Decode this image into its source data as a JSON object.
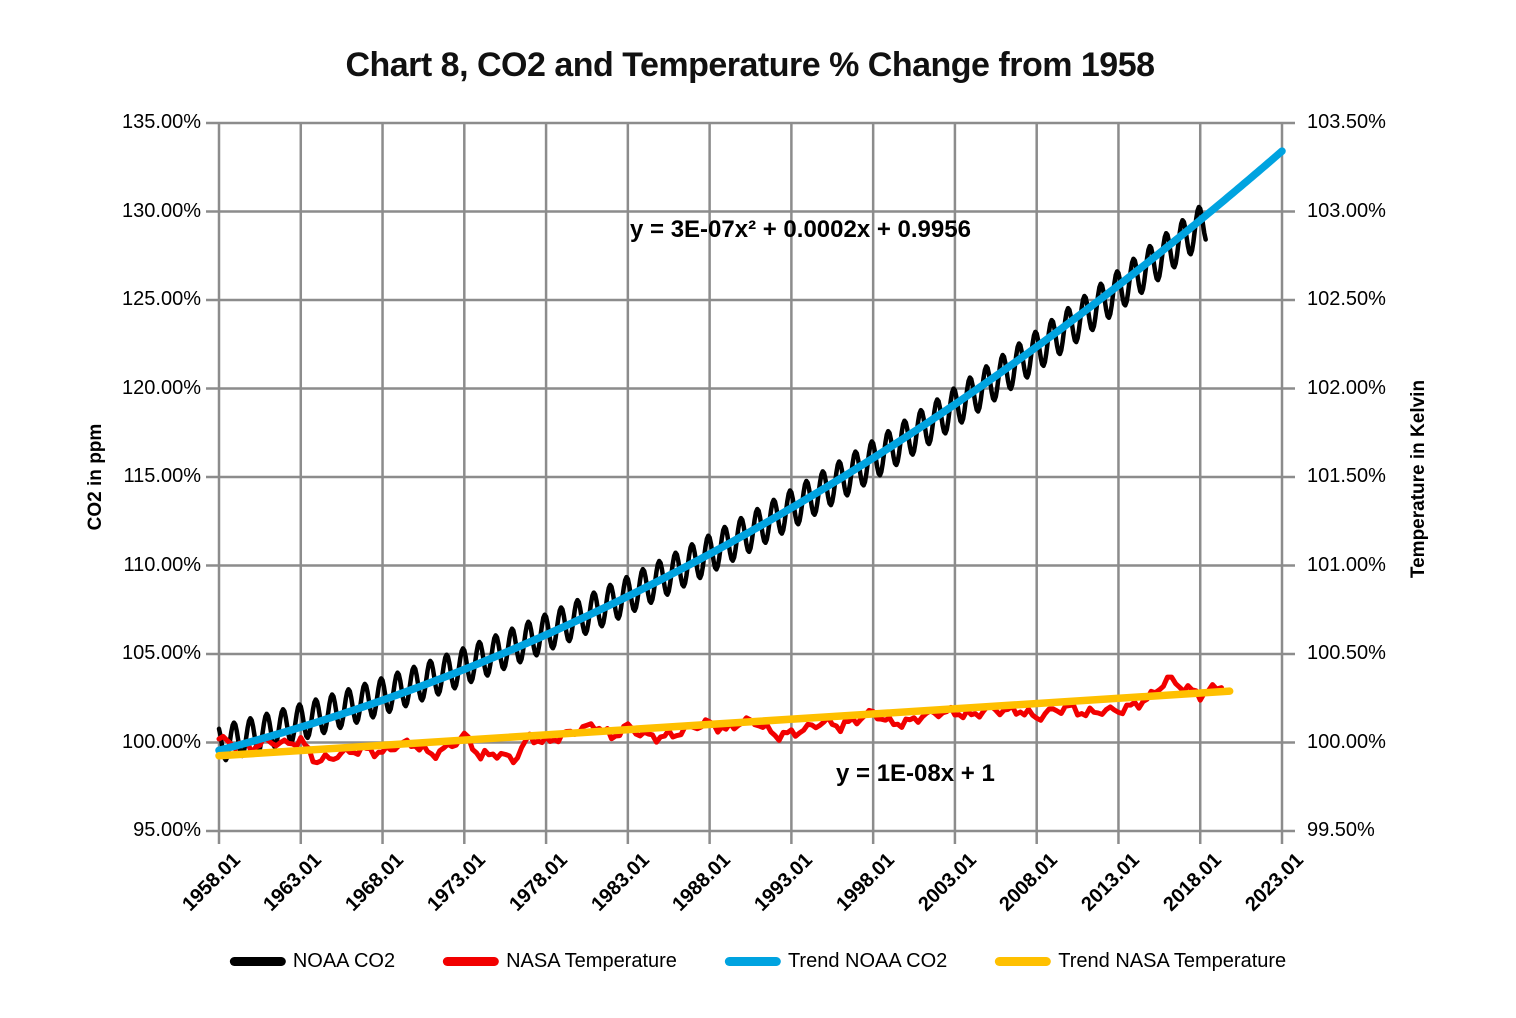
{
  "chart_data": {
    "type": "line",
    "title": "Chart 8, CO2 and Temperature % Change from 1958",
    "grid": true,
    "legend_position": "bottom",
    "colors": {
      "noaa_co2": "#000000",
      "nasa_temperature": "#F20000",
      "trend_noaa_co2": "#00A3E0",
      "trend_nasa_temperature": "#FFC000",
      "gridline": "#8C8C8C",
      "text": "#000000"
    },
    "x_axis": {
      "tick_labels": [
        "1958.01",
        "1963.01",
        "1968.01",
        "1973.01",
        "1978.01",
        "1983.01",
        "1988.01",
        "1993.01",
        "1998.01",
        "2003.01",
        "2008.01",
        "2013.01",
        "2018.01",
        "2023.01"
      ],
      "start_year": 1958,
      "end_year": 2023,
      "tick_step_years": 5
    },
    "left_axis": {
      "title": "CO2 in ppm",
      "tick_labels": [
        "135.00%",
        "130.00%",
        "125.00%",
        "120.00%",
        "115.00%",
        "110.00%",
        "105.00%",
        "100.00%",
        "95.00%"
      ],
      "min_pct": 95.0,
      "max_pct": 135.0,
      "step_pct": 5.0
    },
    "right_axis": {
      "title": "Temperature in Kelvin",
      "tick_labels": [
        "103.50%",
        "103.00%",
        "102.50%",
        "102.00%",
        "101.50%",
        "101.00%",
        "100.50%",
        "100.00%",
        "99.50%"
      ],
      "min_pct": 99.5,
      "max_pct": 103.5,
      "step_pct": 0.5
    },
    "annotations": {
      "co2_trend_equation": "y = 3E-07x² + 0.0002x + 0.9956",
      "temp_trend_equation": "y = 1E-08x + 1"
    },
    "series": [
      {
        "name": "NOAA CO2",
        "color": "#000000",
        "axis": "left",
        "stroke_width": 4.5,
        "model": "quadratic_trend_plus_seasonal_cycle",
        "quad_coeffs": [
          3e-07,
          0.0002,
          0.9956
        ],
        "x_unit": "months_since_1958.01",
        "x_months_range": [
          0,
          724
        ],
        "seasonal_period_months": 12,
        "seasonal_half_amplitude_pct": [
          1.0,
          1.15
        ],
        "center_offset_pct": [
          0.35,
          -0.35
        ],
        "start_value_pct": 100.0,
        "end_value_pct": 130.4
      },
      {
        "name": "NASA Temperature",
        "color": "#F20000",
        "axis": "right",
        "stroke_width": 5,
        "start_year": 1958,
        "end_year": 2019,
        "values_pct": [
          100.02,
          99.99,
          99.97,
          100.01,
          99.99,
          100.01,
          99.89,
          99.92,
          99.95,
          99.96,
          99.94,
          99.99,
          99.99,
          99.93,
          99.97,
          100.04,
          99.92,
          99.94,
          99.9,
          100.03,
          100.0,
          100.04,
          100.07,
          100.1,
          100.03,
          100.09,
          100.04,
          100.03,
          100.05,
          100.09,
          100.11,
          100.07,
          100.12,
          100.11,
          100.04,
          100.05,
          100.08,
          100.12,
          100.09,
          100.13,
          100.17,
          100.11,
          100.11,
          100.15,
          100.17,
          100.17,
          100.15,
          100.19,
          100.18,
          100.18,
          100.14,
          100.18,
          100.2,
          100.16,
          100.18,
          100.18,
          100.21,
          100.26,
          100.36,
          100.31,
          100.27,
          100.31
        ]
      },
      {
        "name": "Trend NOAA CO2",
        "color": "#00A3E0",
        "axis": "left",
        "stroke_width": 7.5,
        "model": "quadratic",
        "equation": "y = 3E-07x² + 0.0002x + 0.9956",
        "quad_coeffs": [
          3e-07,
          0.0002,
          0.9956
        ],
        "x_unit": "months_since_1958.01",
        "x_months_range": [
          0,
          780
        ],
        "start_value_pct": 99.56,
        "end_value_pct": 133.4
      },
      {
        "name": "Trend NASA Temperature",
        "color": "#FFC000",
        "axis": "right",
        "stroke_width": 7.5,
        "model": "linear",
        "equation": "y = 1E-08x + 1",
        "points_year_pct": [
          [
            1958.0,
            99.925
          ],
          [
            2019.8,
            100.29
          ]
        ]
      }
    ]
  }
}
